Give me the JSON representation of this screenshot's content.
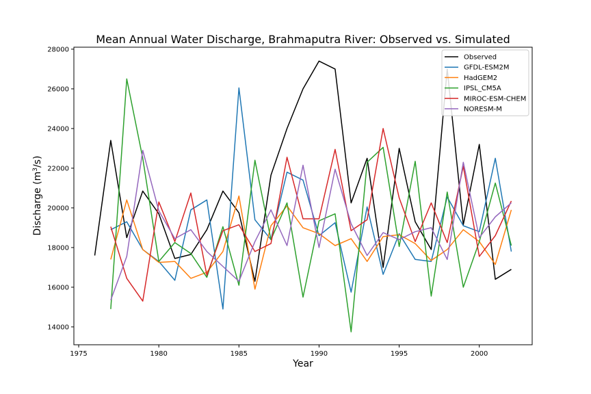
{
  "chart_data": {
    "type": "line",
    "title": "Mean Annual Water Discharge, Brahmaputra River: Observed vs. Simulated",
    "xlabel": "Year",
    "ylabel": "Discharge (m³/s)",
    "ylabel_base": "Discharge (m",
    "ylabel_sup": "3",
    "ylabel_tail": "/s)",
    "xlim": [
      1974.7,
      2003.3
    ],
    "ylim": [
      13100,
      28100
    ],
    "xticks": [
      1975,
      1980,
      1985,
      1990,
      1995,
      2000
    ],
    "yticks": [
      14000,
      16000,
      18000,
      20000,
      22000,
      24000,
      26000,
      28000
    ],
    "grid": false,
    "legend_position": "top-right",
    "series": [
      {
        "name": "Observed",
        "color": "#000000",
        "x": [
          1976,
          1977,
          1978,
          1979,
          1980,
          1981,
          1982,
          1983,
          1984,
          1985,
          1986,
          1987,
          1988,
          1989,
          1990,
          1991,
          1992,
          1993,
          1994,
          1995,
          1996,
          1997,
          1998,
          1999,
          2000,
          2001,
          2002
        ],
        "values": [
          17600,
          23400,
          18500,
          20850,
          19700,
          17450,
          17650,
          18900,
          20850,
          19750,
          16300,
          21650,
          24000,
          26000,
          27400,
          27000,
          20250,
          22500,
          17000,
          23000,
          19300,
          17900,
          27000,
          19150,
          23200,
          16400,
          16900
        ]
      },
      {
        "name": "GFDL-ESM2M",
        "color": "#1f77b4",
        "x": [
          1977,
          1978,
          1979,
          1980,
          1981,
          1982,
          1983,
          1984,
          1985,
          1986,
          1987,
          1988,
          1989,
          1990,
          1991,
          1992,
          1993,
          1994,
          1995,
          1996,
          1997,
          1998,
          1999,
          2000,
          2001,
          2002
        ],
        "values": [
          18900,
          19300,
          17900,
          17300,
          16350,
          19900,
          20400,
          14900,
          26050,
          19400,
          18400,
          21800,
          21400,
          18600,
          19250,
          15750,
          20050,
          16650,
          18700,
          17400,
          17300,
          20550,
          19100,
          18800,
          22500,
          17800
        ]
      },
      {
        "name": "HadGEM2",
        "color": "#ff7f0e",
        "x": [
          1977,
          1978,
          1979,
          1980,
          1981,
          1982,
          1983,
          1984,
          1985,
          1986,
          1987,
          1988,
          1989,
          1990,
          1991,
          1992,
          1993,
          1994,
          1995,
          1996,
          1997,
          1998,
          1999,
          2000,
          2001,
          2002
        ],
        "values": [
          17400,
          20400,
          17900,
          17250,
          17300,
          16450,
          16750,
          17800,
          20600,
          15900,
          19100,
          20100,
          19000,
          18700,
          18100,
          18450,
          17300,
          18550,
          18650,
          18200,
          17350,
          17900,
          18900,
          18300,
          17150,
          19900
        ]
      },
      {
        "name": "IPSL_CM5A",
        "color": "#2ca02c",
        "x": [
          1977,
          1978,
          1979,
          1980,
          1981,
          1982,
          1983,
          1984,
          1985,
          1986,
          1987,
          1988,
          1989,
          1990,
          1991,
          1992,
          1993,
          1994,
          1995,
          1996,
          1997,
          1998,
          1999,
          2000,
          2001,
          2002
        ],
        "values": [
          14900,
          26500,
          22500,
          17300,
          18250,
          17700,
          16500,
          19050,
          16100,
          22400,
          18400,
          20250,
          15500,
          19350,
          19700,
          13750,
          22300,
          23050,
          18050,
          22350,
          15550,
          20800,
          16000,
          18300,
          21250,
          18100
        ]
      },
      {
        "name": "MIROC-ESM-CHEM",
        "color": "#d62728",
        "x": [
          1977,
          1978,
          1979,
          1980,
          1981,
          1982,
          1983,
          1984,
          1985,
          1986,
          1987,
          1988,
          1989,
          1990,
          1991,
          1992,
          1993,
          1994,
          1995,
          1996,
          1997,
          1998,
          1999,
          2000,
          2001,
          2002
        ],
        "values": [
          19050,
          16450,
          15300,
          20300,
          18300,
          20750,
          16600,
          18850,
          19150,
          17800,
          18200,
          22550,
          19450,
          19450,
          22950,
          18850,
          19400,
          24000,
          20500,
          18300,
          20250,
          18250,
          22100,
          17550,
          18600,
          20350
        ]
      },
      {
        "name": "NORESM-M",
        "color": "#9467bd",
        "x": [
          1977,
          1978,
          1979,
          1980,
          1981,
          1982,
          1983,
          1984,
          1985,
          1986,
          1987,
          1988,
          1989,
          1990,
          1991,
          1992,
          1993,
          1994,
          1995,
          1996,
          1997,
          1998,
          1999,
          2000,
          2001,
          2002
        ],
        "values": [
          15350,
          17550,
          22900,
          19850,
          18450,
          18900,
          17800,
          17050,
          16300,
          18300,
          19900,
          18100,
          22150,
          18000,
          21950,
          19200,
          17600,
          18750,
          18400,
          18800,
          19000,
          17400,
          22300,
          18500,
          19550,
          20250
        ]
      }
    ]
  }
}
